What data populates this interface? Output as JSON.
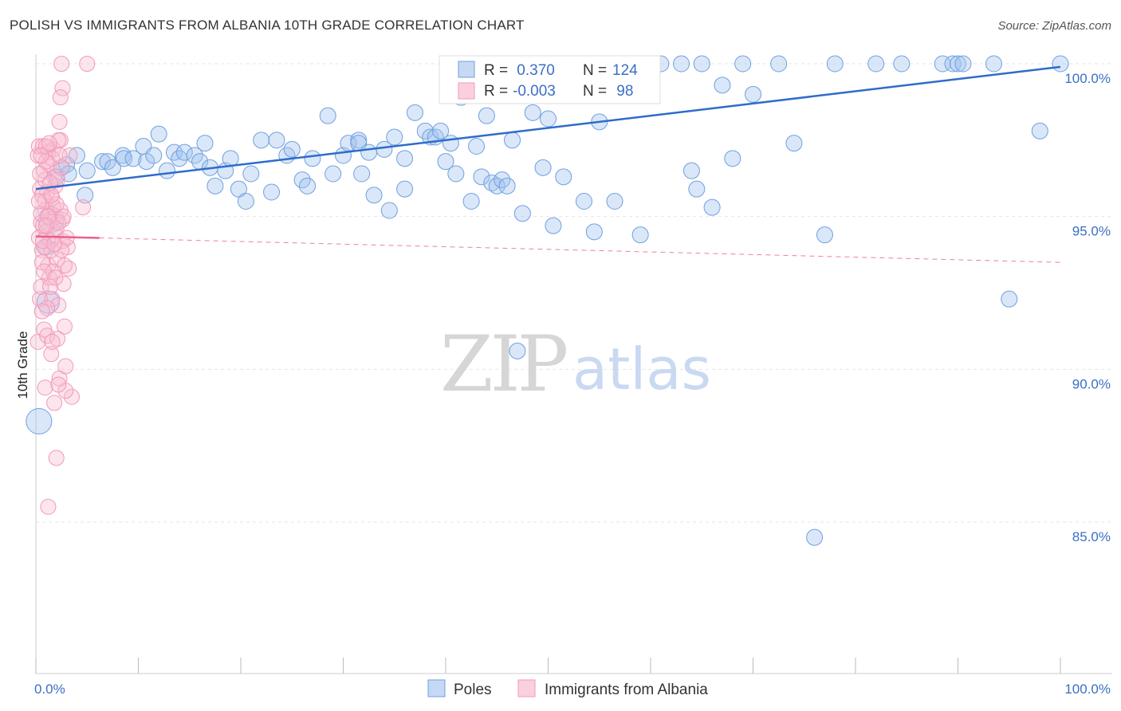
{
  "title": "POLISH VS IMMIGRANTS FROM ALBANIA 10TH GRADE CORRELATION CHART",
  "source": "Source: ZipAtlas.com",
  "watermark": {
    "zip": "ZIP",
    "atlas": "atlas"
  },
  "colors": {
    "blue": "#6f9fe0",
    "blue_line": "#2e6cc9",
    "pink": "#f29ab8",
    "pink_line": "#e8608c",
    "grid": "#e6e6e6",
    "tick_text": "#3b6fc4"
  },
  "legend_top": [
    {
      "r_label": "R =",
      "r_value": " 0.370",
      "n_label": "N =",
      "n_value": "124"
    },
    {
      "r_label": "R =",
      "r_value": "-0.003",
      "n_label": "N =",
      "n_value": " 98"
    }
  ],
  "chart_data": {
    "type": "scatter",
    "ylabel": "10th Grade",
    "xlim": [
      0,
      100
    ],
    "ylim": [
      80.5,
      100.7
    ],
    "x_tick_labels": [
      {
        "x": 0,
        "label": "0.0%"
      },
      {
        "x": 100,
        "label": "100.0%"
      }
    ],
    "y_ticks": [
      {
        "y": 85,
        "label": "85.0%"
      },
      {
        "y": 90,
        "label": "90.0%"
      },
      {
        "y": 95,
        "label": "95.0%"
      },
      {
        "y": 100,
        "label": "100.0%"
      }
    ],
    "legend_position": "bottom",
    "series": [
      {
        "name": "Poles",
        "trend": {
          "x0": 0,
          "y0": 95.9,
          "x1": 100,
          "y1": 99.9,
          "style": "solid"
        },
        "points": [
          [
            0.3,
            88.3
          ],
          [
            1.5,
            94.9
          ],
          [
            1.2,
            92.2
          ],
          [
            1.0,
            94.0
          ],
          [
            2.0,
            96.3
          ],
          [
            2.5,
            96.6
          ],
          [
            3.0,
            96.7
          ],
          [
            3.2,
            96.4
          ],
          [
            4.8,
            95.7
          ],
          [
            4.0,
            97.0
          ],
          [
            5.0,
            96.5
          ],
          [
            6.5,
            96.8
          ],
          [
            7.0,
            96.8
          ],
          [
            7.5,
            96.6
          ],
          [
            8.5,
            97.0
          ],
          [
            8.6,
            96.9
          ],
          [
            10.5,
            97.3
          ],
          [
            9.5,
            96.9
          ],
          [
            10.8,
            96.8
          ],
          [
            11.5,
            97.0
          ],
          [
            12.0,
            97.7
          ],
          [
            12.8,
            96.5
          ],
          [
            13.5,
            97.1
          ],
          [
            14.0,
            96.9
          ],
          [
            14.5,
            97.1
          ],
          [
            15.5,
            97.0
          ],
          [
            16.0,
            96.8
          ],
          [
            16.5,
            97.4
          ],
          [
            17.0,
            96.6
          ],
          [
            17.5,
            96.0
          ],
          [
            18.5,
            96.5
          ],
          [
            19.0,
            96.9
          ],
          [
            19.8,
            95.9
          ],
          [
            20.5,
            95.5
          ],
          [
            21.0,
            96.4
          ],
          [
            22.0,
            97.5
          ],
          [
            23.0,
            95.8
          ],
          [
            23.5,
            97.5
          ],
          [
            24.5,
            97.0
          ],
          [
            25.0,
            97.2
          ],
          [
            26.0,
            96.2
          ],
          [
            26.5,
            96.0
          ],
          [
            27.0,
            96.9
          ],
          [
            28.5,
            98.3
          ],
          [
            29.0,
            96.4
          ],
          [
            30.0,
            97.0
          ],
          [
            30.5,
            97.4
          ],
          [
            31.5,
            97.5
          ],
          [
            31.5,
            97.4
          ],
          [
            31.8,
            96.4
          ],
          [
            32.5,
            97.1
          ],
          [
            33.0,
            95.7
          ],
          [
            34.0,
            97.2
          ],
          [
            34.5,
            95.2
          ],
          [
            35.0,
            97.6
          ],
          [
            36.0,
            95.9
          ],
          [
            36.0,
            96.9
          ],
          [
            37.0,
            98.4
          ],
          [
            38.0,
            97.8
          ],
          [
            38.5,
            97.6
          ],
          [
            39.0,
            97.6
          ],
          [
            39.5,
            97.8
          ],
          [
            40.0,
            96.8
          ],
          [
            40.5,
            97.4
          ],
          [
            41.0,
            96.4
          ],
          [
            41.5,
            98.9
          ],
          [
            42.5,
            95.5
          ],
          [
            43.0,
            97.3
          ],
          [
            43.5,
            96.3
          ],
          [
            44.0,
            98.3
          ],
          [
            44.5,
            96.1
          ],
          [
            45.0,
            96.0
          ],
          [
            45.5,
            96.2
          ],
          [
            46.0,
            96.0
          ],
          [
            46.5,
            97.5
          ],
          [
            47.0,
            90.6
          ],
          [
            47.5,
            95.1
          ],
          [
            48.0,
            100.0
          ],
          [
            48.5,
            98.4
          ],
          [
            49.0,
            99.4
          ],
          [
            49.5,
            96.6
          ],
          [
            50.0,
            98.2
          ],
          [
            50.5,
            94.7
          ],
          [
            51.5,
            96.3
          ],
          [
            52.0,
            99.5
          ],
          [
            52.5,
            100.0
          ],
          [
            53.5,
            95.5
          ],
          [
            54.0,
            100.0
          ],
          [
            54.5,
            94.5
          ],
          [
            55.0,
            98.1
          ],
          [
            55.5,
            99.9
          ],
          [
            56.5,
            95.5
          ],
          [
            57.0,
            100.0
          ],
          [
            58.0,
            100.0
          ],
          [
            59.0,
            94.4
          ],
          [
            60.0,
            100.0
          ],
          [
            61.0,
            100.0
          ],
          [
            63.0,
            100.0
          ],
          [
            64.0,
            96.5
          ],
          [
            64.5,
            95.9
          ],
          [
            65.0,
            100.0
          ],
          [
            66.0,
            95.3
          ],
          [
            67.0,
            99.3
          ],
          [
            68.0,
            96.9
          ],
          [
            69.0,
            100.0
          ],
          [
            70.0,
            99.0
          ],
          [
            72.5,
            100.0
          ],
          [
            74.0,
            97.4
          ],
          [
            76.0,
            84.5
          ],
          [
            77.0,
            94.4
          ],
          [
            78.0,
            100.0
          ],
          [
            82.0,
            100.0
          ],
          [
            84.5,
            100.0
          ],
          [
            88.5,
            100.0
          ],
          [
            89.5,
            100.0
          ],
          [
            90.0,
            100.0
          ],
          [
            90.5,
            100.0
          ],
          [
            93.5,
            100.0
          ],
          [
            95.0,
            92.3
          ],
          [
            98.0,
            97.8
          ],
          [
            100.0,
            100.0
          ]
        ]
      },
      {
        "name": "Immigrants from Albania",
        "trend": {
          "x0": 0,
          "y0": 94.35,
          "x1": 6.2,
          "y1": 94.3,
          "style": "solid",
          "ext_x1": 100,
          "ext_y1": 93.5,
          "ext_style": "dashed"
        },
        "points": [
          [
            0.2,
            97.0
          ],
          [
            0.3,
            97.3
          ],
          [
            0.4,
            95.9
          ],
          [
            0.5,
            94.8
          ],
          [
            0.3,
            94.3
          ],
          [
            0.6,
            93.9
          ],
          [
            0.4,
            92.3
          ],
          [
            0.2,
            90.9
          ],
          [
            0.8,
            96.5
          ],
          [
            0.7,
            97.3
          ],
          [
            0.9,
            95.2
          ],
          [
            1.0,
            94.5
          ],
          [
            0.5,
            92.7
          ],
          [
            0.8,
            91.3
          ],
          [
            0.9,
            89.4
          ],
          [
            1.1,
            95.8
          ],
          [
            1.2,
            97.1
          ],
          [
            1.3,
            96.7
          ],
          [
            1.4,
            95.1
          ],
          [
            1.5,
            94.9
          ],
          [
            1.2,
            93.4
          ],
          [
            1.6,
            92.3
          ],
          [
            1.5,
            90.5
          ],
          [
            1.7,
            97.2
          ],
          [
            1.8,
            96.3
          ],
          [
            1.6,
            95.6
          ],
          [
            1.9,
            95.0
          ],
          [
            2.0,
            94.6
          ],
          [
            2.1,
            93.6
          ],
          [
            2.2,
            92.1
          ],
          [
            2.3,
            89.7
          ],
          [
            2.4,
            97.5
          ],
          [
            2.5,
            96.6
          ],
          [
            2.6,
            94.9
          ],
          [
            2.7,
            92.8
          ],
          [
            2.8,
            91.4
          ],
          [
            2.9,
            90.1
          ],
          [
            3.1,
            94.0
          ],
          [
            3.2,
            93.3
          ],
          [
            3.5,
            89.1
          ],
          [
            5.0,
            100.0
          ],
          [
            2.5,
            100.0
          ],
          [
            2.6,
            99.2
          ],
          [
            2.4,
            98.9
          ],
          [
            2.3,
            98.1
          ],
          [
            2.2,
            97.5
          ],
          [
            1.9,
            96.0
          ],
          [
            1.7,
            95.3
          ],
          [
            1.4,
            94.2
          ],
          [
            1.3,
            93.0
          ],
          [
            1.1,
            91.1
          ],
          [
            1.8,
            88.9
          ],
          [
            2.0,
            87.1
          ],
          [
            1.2,
            85.5
          ],
          [
            0.6,
            95.7
          ],
          [
            0.7,
            94.7
          ],
          [
            0.9,
            96.2
          ],
          [
            1.0,
            97.3
          ],
          [
            1.1,
            92.0
          ],
          [
            1.5,
            93.9
          ],
          [
            1.6,
            96.9
          ],
          [
            1.9,
            94.4
          ],
          [
            2.1,
            96.2
          ],
          [
            2.4,
            95.2
          ],
          [
            2.6,
            94.2
          ],
          [
            2.8,
            93.4
          ],
          [
            3.0,
            94.3
          ],
          [
            0.4,
            96.4
          ],
          [
            0.5,
            95.1
          ],
          [
            0.6,
            93.5
          ],
          [
            0.8,
            94.0
          ],
          [
            0.9,
            95.5
          ],
          [
            1.3,
            97.4
          ],
          [
            1.4,
            96.1
          ],
          [
            1.7,
            93.2
          ],
          [
            2.0,
            95.4
          ],
          [
            2.2,
            94.8
          ],
          [
            2.5,
            93.9
          ],
          [
            2.7,
            95.0
          ],
          [
            3.3,
            97.0
          ],
          [
            4.6,
            95.3
          ],
          [
            1.0,
            96.8
          ],
          [
            0.3,
            95.5
          ],
          [
            0.7,
            94.2
          ],
          [
            1.2,
            95.0
          ],
          [
            1.8,
            94.1
          ],
          [
            2.3,
            97.0
          ],
          [
            0.5,
            97.0
          ],
          [
            1.5,
            95.7
          ],
          [
            2.1,
            91.0
          ],
          [
            1.6,
            90.9
          ],
          [
            2.9,
            89.3
          ],
          [
            1.0,
            94.7
          ],
          [
            0.8,
            93.2
          ],
          [
            1.4,
            92.7
          ],
          [
            0.6,
            91.9
          ],
          [
            2.2,
            89.5
          ],
          [
            1.9,
            93.0
          ]
        ]
      }
    ]
  },
  "bottom_legend": [
    {
      "label": "Poles"
    },
    {
      "label": "Immigrants from Albania"
    }
  ]
}
